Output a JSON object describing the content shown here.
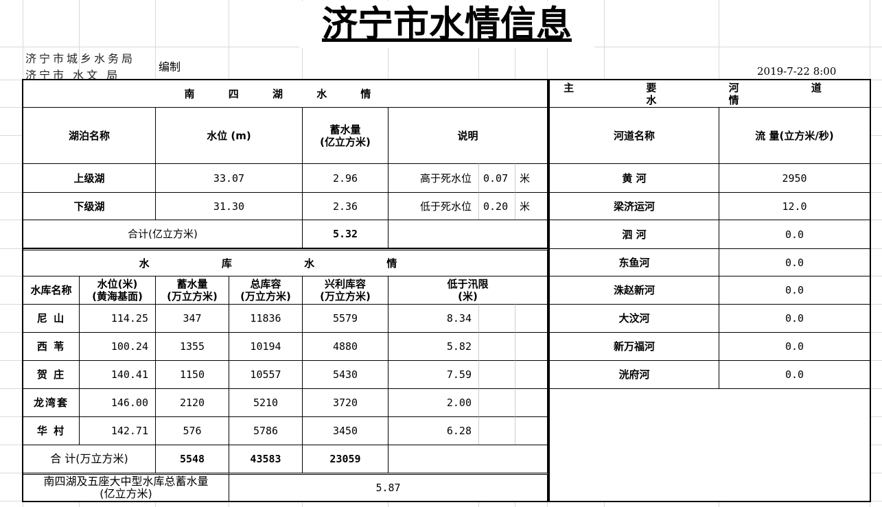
{
  "title": "济宁市水情信息",
  "org": {
    "line1": "济宁市城乡水务局",
    "line2": "济宁市 水文 局",
    "compiled": "编制"
  },
  "date": "2019-7-22 8:00",
  "lake": {
    "section_title": "南 四 湖 水 情",
    "headers": {
      "name": "湖泊名称",
      "level": "水位 (m)",
      "storage": "蓄水量\n(亿立方米)",
      "note": "说明"
    },
    "rows": [
      {
        "name": "上级湖",
        "level": "33.07",
        "storage": "2.96",
        "note": "高于死水位",
        "diff": "0.07",
        "unit": "米"
      },
      {
        "name": "下级湖",
        "level": "31.30",
        "storage": "2.36",
        "note": "低于死水位",
        "diff": "0.20",
        "unit": "米"
      }
    ],
    "total_label": "合计(亿立方米)",
    "total": "5.32"
  },
  "reservoir": {
    "section_title": "水 库 水 情",
    "headers": {
      "name": "水库名称",
      "level": "水位(米)\n(黄海基面)",
      "storage": "蓄水量\n(万立方米)",
      "total_cap": "总库容\n(万立方米)",
      "useful_cap": "兴利库容\n(万立方米)",
      "below_limit": "低于汛限\n(米)"
    },
    "rows": [
      {
        "name": "尼 山",
        "level": "114.25",
        "storage": "347",
        "total_cap": "11836",
        "useful_cap": "5579",
        "below_limit": "8.34"
      },
      {
        "name": "西 苇",
        "level": "100.24",
        "storage": "1355",
        "total_cap": "10194",
        "useful_cap": "4880",
        "below_limit": "5.82"
      },
      {
        "name": "贺 庄",
        "level": "140.41",
        "storage": "1150",
        "total_cap": "10557",
        "useful_cap": "5430",
        "below_limit": "7.59"
      },
      {
        "name": "龙湾套",
        "level": "146.00",
        "storage": "2120",
        "total_cap": "5210",
        "useful_cap": "3720",
        "below_limit": "2.00"
      },
      {
        "name": "华 村",
        "level": "142.71",
        "storage": "576",
        "total_cap": "5786",
        "useful_cap": "3450",
        "below_limit": "6.28"
      }
    ],
    "total_label": "合 计(万立方米)",
    "total_storage": "5548",
    "total_total_cap": "43583",
    "total_useful_cap": "23059"
  },
  "grand_total": {
    "label": "南四湖及五座大中型水库总蓄水量\n(亿立方米)",
    "value": "5.87"
  },
  "river": {
    "section_title": "主 要 河 道 水 情",
    "headers": {
      "name": "河道名称",
      "flow": "流 量(立方米/秒)"
    },
    "rows": [
      {
        "name": "黄 河",
        "flow": "2950"
      },
      {
        "name": "梁济运河",
        "flow": "12.0"
      },
      {
        "name": "泗 河",
        "flow": "0.0"
      },
      {
        "name": "东鱼河",
        "flow": "0.0"
      },
      {
        "name": "洙赵新河",
        "flow": "0.0"
      },
      {
        "name": "大汶河",
        "flow": "0.0"
      },
      {
        "name": "新万福河",
        "flow": "0.0"
      },
      {
        "name": "洸府河",
        "flow": "0.0"
      }
    ]
  }
}
